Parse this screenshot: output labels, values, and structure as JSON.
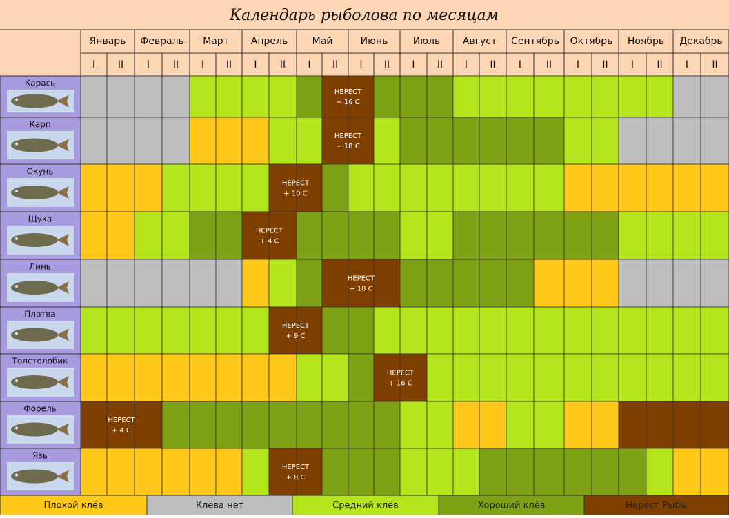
{
  "title": "Календарь рыболова по месяцам",
  "months": [
    "Январь",
    "Февраль",
    "Март",
    "Апрель",
    "Май",
    "Июнь",
    "Июль",
    "Август",
    "Сентябрь",
    "Октябрь",
    "Ноябрь",
    "Декабрь"
  ],
  "halves": [
    "I",
    "II"
  ],
  "legend": [
    {
      "label": "Плохой клёв",
      "color": "#FFC81A"
    },
    {
      "label": "Клёва нет",
      "color": "#BDBDBD"
    },
    {
      "label": "Средний клёв",
      "color": "#B5E61D"
    },
    {
      "label": "Хороший клёв",
      "color": "#7FA116"
    },
    {
      "label": "Нерест Рыбы",
      "color": "#7F3F00"
    }
  ],
  "rows": [
    {
      "fish": "Карась",
      "cells": [
        1,
        1,
        1,
        1,
        2,
        2,
        2,
        2,
        3,
        4,
        4,
        3,
        3,
        3,
        2,
        2,
        2,
        2,
        2,
        2,
        2,
        2,
        1,
        1
      ],
      "spawn": {
        "label": "НЕРЕСТ",
        "temp": "+ 16   С"
      }
    },
    {
      "fish": "Карп",
      "cells": [
        1,
        1,
        1,
        1,
        0,
        0,
        0,
        2,
        2,
        4,
        4,
        2,
        3,
        3,
        3,
        3,
        3,
        3,
        2,
        2,
        1,
        1,
        1,
        1
      ],
      "spawn": {
        "label": "НЕРЕСТ",
        "temp": "+ 18   С"
      }
    },
    {
      "fish": "Окунь",
      "cells": [
        0,
        0,
        0,
        2,
        2,
        2,
        2,
        4,
        4,
        3,
        2,
        2,
        2,
        2,
        2,
        2,
        2,
        2,
        0,
        0,
        0,
        0,
        0,
        0
      ],
      "spawn": {
        "label": "НЕРЕСТ",
        "temp": "+ 10   С"
      }
    },
    {
      "fish": "Щука",
      "cells": [
        0,
        0,
        2,
        2,
        3,
        3,
        4,
        4,
        3,
        3,
        3,
        3,
        2,
        2,
        3,
        3,
        3,
        3,
        3,
        3,
        2,
        2,
        2,
        2
      ],
      "spawn": {
        "label": "НЕРЕСТ",
        "temp": "+ 4   С"
      }
    },
    {
      "fish": "Линь",
      "cells": [
        1,
        1,
        1,
        1,
        1,
        1,
        0,
        2,
        3,
        4,
        4,
        4,
        3,
        3,
        3,
        3,
        3,
        0,
        0,
        0,
        1,
        1,
        1,
        1
      ],
      "spawn": {
        "label": "НЕРЕСТ",
        "temp": "+ 18   С"
      }
    },
    {
      "fish": "Плотва",
      "cells": [
        2,
        2,
        2,
        2,
        2,
        2,
        2,
        4,
        4,
        3,
        3,
        2,
        2,
        2,
        2,
        2,
        2,
        2,
        2,
        2,
        2,
        2,
        2,
        2
      ],
      "spawn": {
        "label": "НЕРЕСТ",
        "temp": "+ 9   С"
      }
    },
    {
      "fish": "Толстолобик",
      "cells": [
        0,
        0,
        0,
        0,
        0,
        0,
        0,
        0,
        2,
        2,
        3,
        4,
        4,
        2,
        2,
        2,
        2,
        2,
        2,
        2,
        2,
        2,
        2,
        2
      ],
      "spawn": {
        "label": "НЕРЕСТ",
        "temp": "+ 16   С"
      }
    },
    {
      "fish": "Форель",
      "cells": [
        4,
        4,
        4,
        3,
        3,
        3,
        3,
        3,
        3,
        3,
        3,
        3,
        2,
        2,
        0,
        0,
        2,
        2,
        0,
        0,
        4,
        4,
        4,
        4
      ],
      "spawn": {
        "label": "НЕРЕСТ",
        "temp": "+ 4   С"
      }
    },
    {
      "fish": "Язь",
      "cells": [
        0,
        0,
        0,
        0,
        0,
        0,
        2,
        4,
        4,
        3,
        3,
        3,
        2,
        2,
        2,
        3,
        3,
        3,
        3,
        3,
        3,
        2,
        0,
        0
      ],
      "spawn": {
        "label": "НЕРЕСТ",
        "temp": "+ 8   С"
      }
    }
  ]
}
